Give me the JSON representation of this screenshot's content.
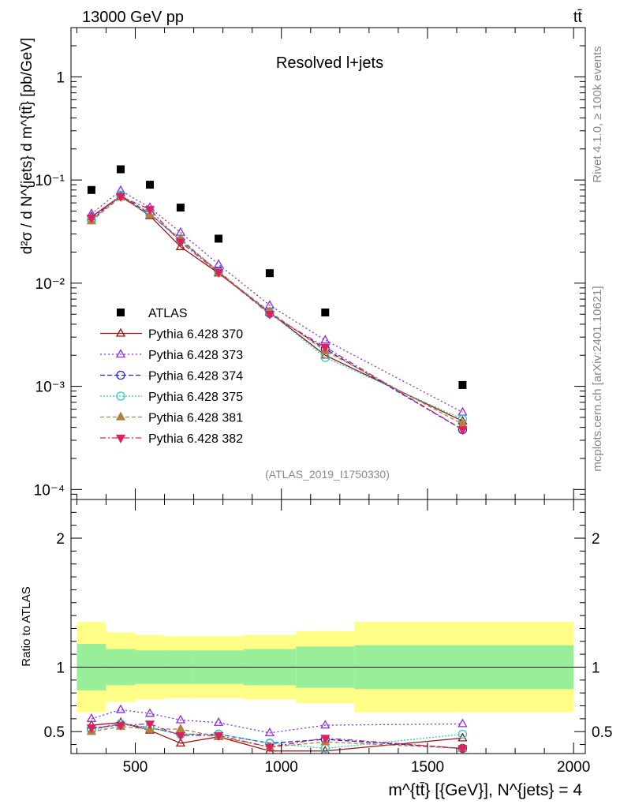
{
  "header": {
    "energy": "13000 GeV pp",
    "process": "tt̄"
  },
  "side_labels": {
    "rivet": "Rivet 4.1.0, ≥ 100k events",
    "mcplots": "mcplots.cern.ch [arXiv:2401.10621]"
  },
  "main": {
    "title": "Resolved l+jets",
    "analysis_id": "(ATLAS_2019_I1750330)",
    "ylabel": "d²σ / d N^{jets} d m^{tt̄} [pb/GeV]",
    "ytick_labels": [
      "1",
      "10⁻¹",
      "10⁻²",
      "10⁻³",
      "10⁻⁴"
    ]
  },
  "ratio": {
    "ylabel": "Ratio to ATLAS",
    "ytick_labels": [
      "2",
      "1",
      "0.5"
    ]
  },
  "xaxis": {
    "label": "m^{tt̄} [{GeV}], N^{jets} = 4",
    "tick_labels": [
      "500",
      "1000",
      "1500",
      "2000"
    ]
  },
  "legend": {
    "entries": [
      "ATLAS",
      "Pythia 6.428 370",
      "Pythia 6.428 373",
      "Pythia 6.428 374",
      "Pythia 6.428 375",
      "Pythia 6.428 381",
      "Pythia 6.428 382"
    ]
  },
  "chart_data": {
    "type": "scatter",
    "title": "Resolved l+jets",
    "xlabel": "m^{tt̄} [{GeV}], N^{jets} = 4",
    "ylabel": "d²σ / d N^{jets} d m^{tt̄} [pb/GeV]",
    "xscale": "linear",
    "yscale": "log",
    "xlim": [
      280,
      2040
    ],
    "ylim": [
      8e-05,
      3.0
    ],
    "ratio_ylim": [
      0.33,
      2.3
    ],
    "bin_edges": [
      300,
      400,
      500,
      600,
      700,
      870,
      1050,
      1250,
      2000
    ],
    "x": [
      350,
      450,
      550,
      655,
      785,
      960,
      1150,
      1620
    ],
    "data": {
      "name": "ATLAS",
      "color": "#000000",
      "values": [
        0.08,
        0.127,
        0.09,
        0.054,
        0.027,
        0.0125,
        0.0052,
        0.00103
      ]
    },
    "bands": {
      "inner": [
        0.18,
        0.14,
        0.13,
        0.13,
        0.13,
        0.14,
        0.16,
        0.17
      ],
      "outer": [
        0.35,
        0.27,
        0.25,
        0.24,
        0.24,
        0.25,
        0.28,
        0.35
      ],
      "inner_color": "#99ee99",
      "outer_color": "#ffff88"
    },
    "series": [
      {
        "name": "Pythia 6.428 370",
        "color": "#a01010",
        "marker": "triangle-open",
        "dash": "",
        "values": [
          0.044,
          0.07,
          0.045,
          0.0225,
          0.0125,
          0.0052,
          0.002,
          0.00046
        ],
        "ratio": [
          0.55,
          0.57,
          0.51,
          0.41,
          0.46,
          0.35,
          0.35,
          0.45
        ]
      },
      {
        "name": "Pythia 6.428 373",
        "color": "#8a2be2",
        "marker": "triangle-open",
        "dash": "2,3",
        "values": [
          0.047,
          0.079,
          0.054,
          0.031,
          0.0152,
          0.0061,
          0.0028,
          0.00056
        ],
        "ratio": [
          0.6,
          0.67,
          0.64,
          0.59,
          0.57,
          0.49,
          0.55,
          0.56
        ]
      },
      {
        "name": "Pythia 6.428 374",
        "color": "#2020dd",
        "marker": "circle-open",
        "dash": "6,3",
        "values": [
          0.041,
          0.071,
          0.047,
          0.026,
          0.013,
          0.0051,
          0.0023,
          0.00038
        ],
        "ratio": [
          0.52,
          0.56,
          0.53,
          0.48,
          0.48,
          0.41,
          0.44,
          0.37
        ]
      },
      {
        "name": "Pythia 6.428 375",
        "color": "#20d0c0",
        "marker": "circle-open",
        "dash": "2,2",
        "values": [
          0.041,
          0.071,
          0.048,
          0.026,
          0.0128,
          0.0052,
          0.0019,
          0.00048
        ],
        "ratio": [
          0.51,
          0.56,
          0.53,
          0.48,
          0.48,
          0.41,
          0.37,
          0.48
        ]
      },
      {
        "name": "Pythia 6.428 381",
        "color": "#b08040",
        "marker": "triangle-filled",
        "dash": "5,3",
        "values": [
          0.04,
          0.068,
          0.046,
          0.027,
          0.0128,
          0.0053,
          0.0022,
          0.00043
        ],
        "ratio": [
          0.5,
          0.54,
          0.52,
          0.52,
          0.46,
          0.38,
          0.42,
          0.37
        ]
      },
      {
        "name": "Pythia 6.428 382",
        "color": "#e0205a",
        "marker": "triangle-down-filled",
        "dash": "7,3,2,3",
        "values": [
          0.043,
          0.069,
          0.052,
          0.025,
          0.0127,
          0.005,
          0.0024,
          0.00038
        ],
        "ratio": [
          0.53,
          0.55,
          0.56,
          0.47,
          0.47,
          0.38,
          0.45,
          0.37
        ]
      }
    ]
  }
}
